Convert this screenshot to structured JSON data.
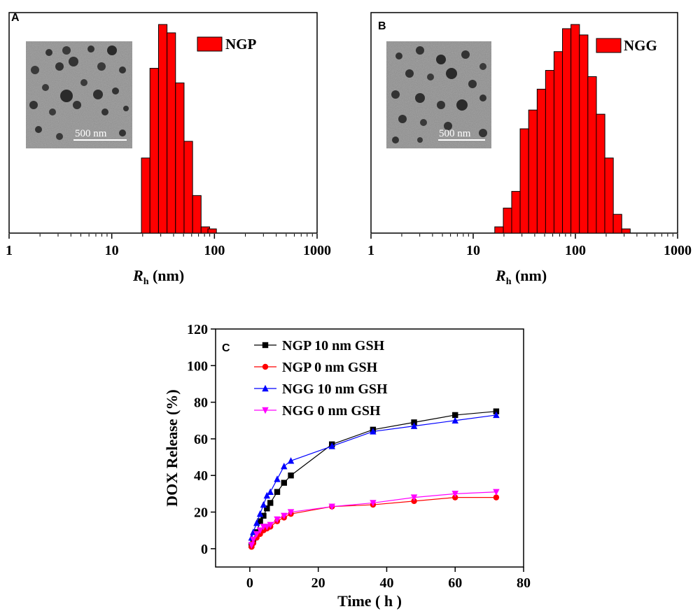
{
  "chart_data": [
    {
      "panel": "A",
      "type": "bar",
      "xscale": "log",
      "xlim": [
        1,
        1000
      ],
      "xticks": [
        "1",
        "10",
        "100",
        "1000"
      ],
      "xlabel_main": "R",
      "xlabel_sub": "h",
      "xlabel_unit": " (nm)",
      "bin_centers": [
        21.4,
        25.9,
        31.4,
        38.0,
        46.0,
        55.7,
        67.4,
        81.6,
        95.0
      ],
      "values": [
        36,
        79,
        100,
        96,
        72,
        44,
        18,
        3,
        0
      ],
      "legend": "NGP",
      "bar_color": "#ff0000",
      "inset": {
        "scale_bar_label": "500 nm"
      }
    },
    {
      "panel": "B",
      "type": "bar",
      "xscale": "log",
      "xlim": [
        1,
        1000
      ],
      "xticks": [
        "1",
        "10",
        "100",
        "1000"
      ],
      "xlabel_main": "R",
      "xlabel_sub": "h",
      "xlabel_unit": " (nm)",
      "bin_centers": [
        17.9,
        21.7,
        26.2,
        31.7,
        38.4,
        46.5,
        56.2,
        68.0,
        82.3,
        99.6,
        120.5,
        145.8,
        176.4,
        213.4,
        258.2,
        312.4
      ],
      "values": [
        3,
        12,
        20,
        50,
        59,
        69,
        78,
        87,
        98,
        100,
        95,
        75,
        57,
        36,
        9,
        2
      ],
      "legend": "NGG",
      "bar_color": "#ff0000",
      "inset": {
        "scale_bar_label": "500 nm"
      }
    },
    {
      "panel": "C",
      "type": "line",
      "xlabel": "Time ( h )",
      "ylabel": "DOX Release (%)",
      "xlim": [
        -10,
        80
      ],
      "ylim": [
        -10,
        120
      ],
      "xticks": [
        "0",
        "20",
        "40",
        "60",
        "80"
      ],
      "yticks": [
        "0",
        "20",
        "40",
        "60",
        "80",
        "100",
        "120"
      ],
      "x": [
        0.5,
        1,
        2,
        3,
        4,
        5,
        6,
        8,
        10,
        12,
        24,
        36,
        48,
        60,
        72
      ],
      "series": [
        {
          "name": "NGP 10 nm GSH",
          "color": "#000000",
          "marker": "square",
          "values": [
            2,
            4,
            9,
            15,
            18,
            22,
            25,
            31,
            36,
            40,
            57,
            65,
            69,
            73,
            75
          ]
        },
        {
          "name": "NGP 0 nm GSH",
          "color": "#ff0000",
          "marker": "circle",
          "values": [
            1,
            3,
            6,
            8,
            10,
            11,
            12,
            15,
            17,
            19,
            23,
            24,
            26,
            28,
            28
          ]
        },
        {
          "name": "NGG 10 nm GSH",
          "color": "#0000ff",
          "marker": "triangle-up",
          "values": [
            6,
            9,
            14,
            19,
            24,
            29,
            31,
            38,
            45,
            48,
            56,
            64,
            67,
            70,
            73
          ]
        },
        {
          "name": "NGG 0 nm GSH",
          "color": "#ff00ff",
          "marker": "triangle-down",
          "values": [
            2,
            5,
            8,
            10,
            12,
            12,
            13,
            16,
            18,
            20,
            23,
            25,
            28,
            30,
            31
          ]
        }
      ]
    }
  ]
}
